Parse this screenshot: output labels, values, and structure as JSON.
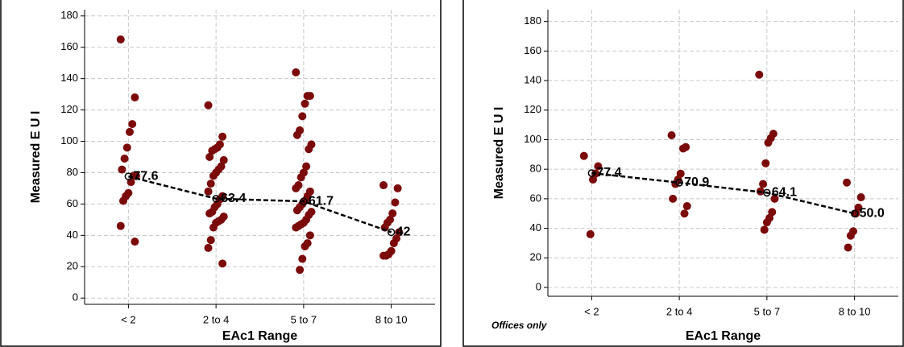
{
  "chart_data": [
    {
      "type": "strip",
      "x_label": "EAc1 Range",
      "y_label": "Measured E U I",
      "categories": [
        "< 2",
        "2 to 4",
        "5 to 7",
        "8 to 10"
      ],
      "points": [
        [
          165,
          128,
          111,
          106,
          96,
          89,
          82,
          78,
          78,
          74,
          67,
          65,
          62,
          46,
          36
        ],
        [
          123,
          103,
          98,
          96,
          95,
          94,
          90,
          88,
          84,
          82,
          80,
          78,
          73,
          68,
          65,
          63,
          60,
          58,
          55,
          54,
          52,
          50,
          49,
          48,
          45,
          37,
          32,
          22
        ],
        [
          144,
          129,
          129,
          124,
          116,
          107,
          104,
          98,
          95,
          84,
          80,
          77,
          72,
          70,
          68,
          65,
          62,
          60,
          58,
          56,
          55,
          53,
          50,
          48,
          47,
          46,
          45,
          40,
          35,
          33,
          25,
          18
        ],
        [
          72,
          70,
          61,
          54,
          50,
          48,
          45,
          42,
          38,
          35,
          30,
          28,
          27,
          27
        ]
      ],
      "means": [
        77.6,
        63.4,
        61.7,
        42
      ],
      "color": "#7b0a0a",
      "ylim": [
        -4,
        184
      ],
      "yticks": [
        0,
        20,
        40,
        60,
        80,
        100,
        120,
        140,
        160,
        180
      ],
      "grid": true
    },
    {
      "type": "strip",
      "x_label": "EAc1 Range",
      "y_label": "Measured E U I",
      "annotation": "Offices only",
      "categories": [
        "< 2",
        "2 to 4",
        "5 to 7",
        "8 to 10"
      ],
      "points": [
        [
          89,
          82,
          77,
          73,
          36
        ],
        [
          103,
          95,
          94,
          77,
          73,
          70,
          60,
          55,
          50
        ],
        [
          144,
          104,
          101,
          98,
          84,
          70,
          65,
          60,
          51,
          47,
          44,
          39
        ],
        [
          71,
          61,
          54,
          50,
          38,
          35,
          27
        ]
      ],
      "means": [
        77.4,
        70.9,
        64.1,
        50.0
      ],
      "value_labels": [
        "77.4",
        "70.9",
        "64.1",
        "50.0"
      ],
      "color": "#7b0a0a",
      "ylim": [
        -6,
        188
      ],
      "yticks": [
        0,
        20,
        40,
        60,
        80,
        100,
        120,
        140,
        160,
        180
      ],
      "grid": true
    }
  ]
}
